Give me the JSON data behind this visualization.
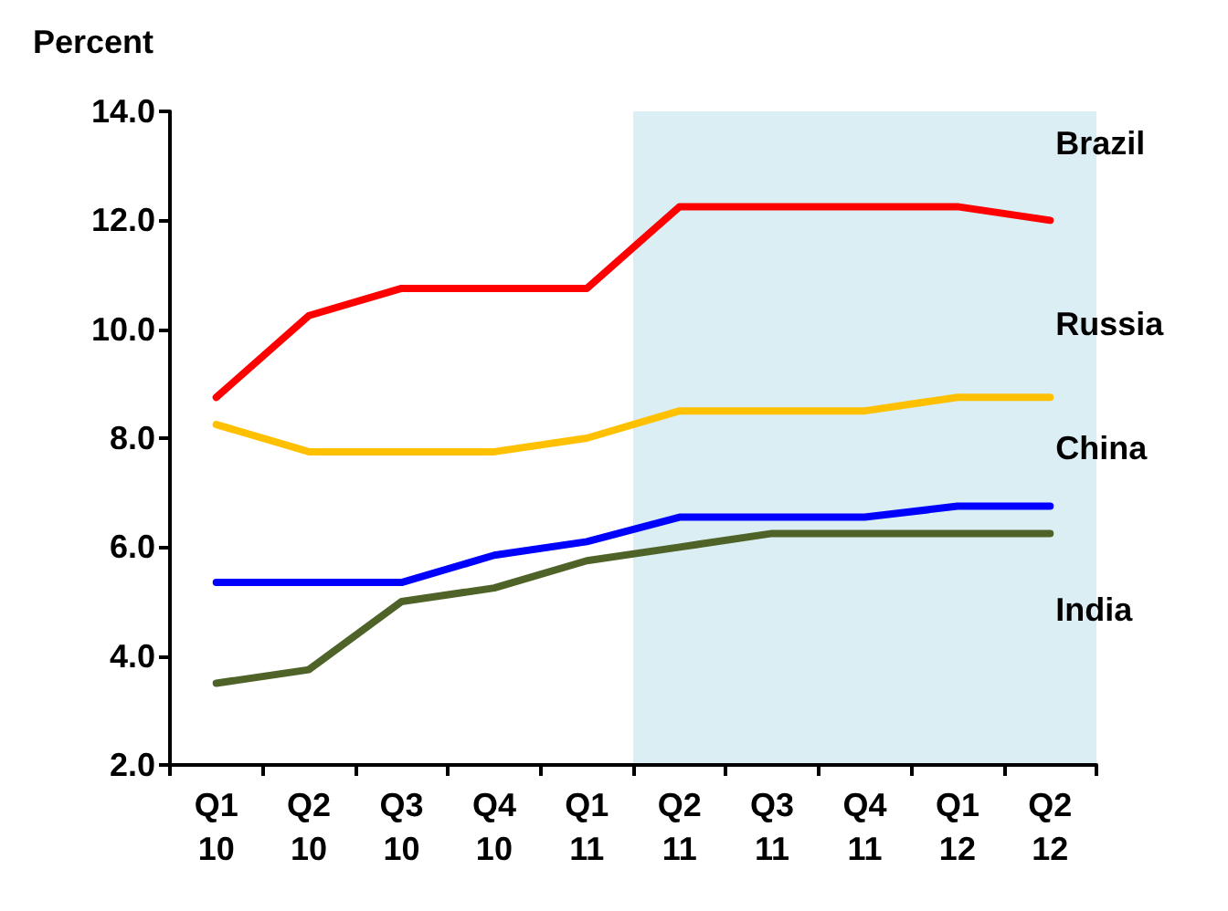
{
  "chart_data": {
    "type": "line",
    "ylabel": "Percent",
    "categories": [
      "Q1 10",
      "Q2 10",
      "Q3 10",
      "Q4 10",
      "Q1 11",
      "Q2 11",
      "Q3 11",
      "Q4 11",
      "Q1 12",
      "Q2 12"
    ],
    "series": [
      {
        "name": "Brazil",
        "color": "#ff0000",
        "values": [
          8.75,
          10.25,
          10.75,
          10.75,
          10.75,
          12.25,
          12.25,
          12.25,
          12.25,
          12.0
        ]
      },
      {
        "name": "Russia",
        "color": "#ffc000",
        "values": [
          8.25,
          7.75,
          7.75,
          7.75,
          8.0,
          8.5,
          8.5,
          8.5,
          8.75,
          8.75
        ]
      },
      {
        "name": "China",
        "color": "#0000ff",
        "values": [
          5.35,
          5.35,
          5.35,
          5.85,
          6.1,
          6.55,
          6.55,
          6.55,
          6.75,
          6.75
        ]
      },
      {
        "name": "India",
        "color": "#4f6228",
        "values": [
          3.5,
          3.75,
          5.0,
          5.25,
          5.75,
          6.0,
          6.25,
          6.25,
          6.25,
          6.25
        ]
      }
    ],
    "ylim": [
      2,
      14
    ],
    "yticks": [
      {
        "value": 2,
        "label": "2.0"
      },
      {
        "value": 4,
        "label": "4.0"
      },
      {
        "value": 6,
        "label": "6.0"
      },
      {
        "value": 8,
        "label": "8.0"
      },
      {
        "value": 10,
        "label": "10.0"
      },
      {
        "value": 12,
        "label": "12.0"
      },
      {
        "value": 14,
        "label": "14.0"
      }
    ],
    "bands": [
      {
        "axis": "x",
        "from": "Q2 11",
        "to": "Q2 12",
        "color": "#daeef3"
      }
    ],
    "grid": false,
    "legend": false,
    "marker": "none",
    "line_style": "solid"
  }
}
